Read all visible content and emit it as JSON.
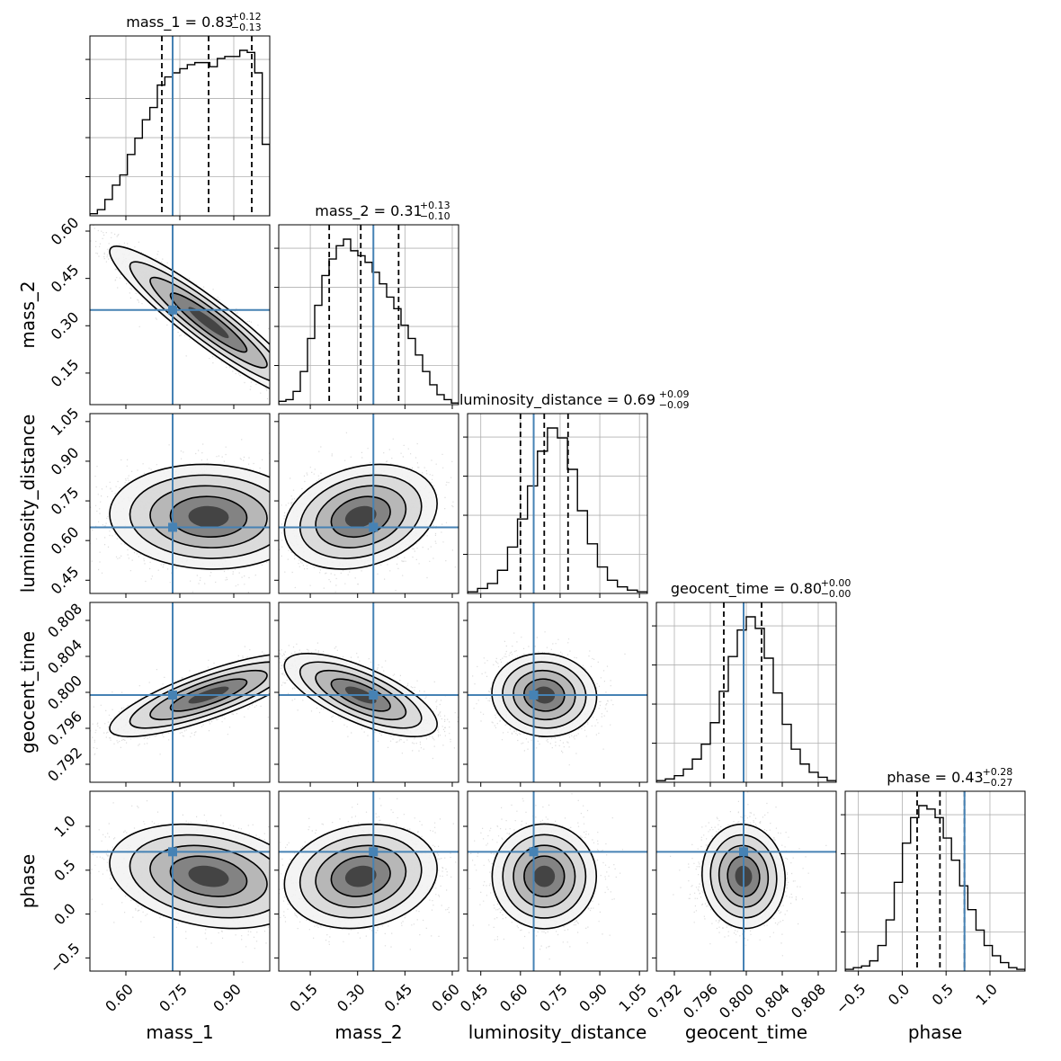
{
  "chart_data": {
    "type": "corner",
    "parameters": [
      {
        "name": "mass_1",
        "label": "mass_1",
        "median": "0.83",
        "plus": "+0.12",
        "minus": "−0.13",
        "truth": 0.73,
        "quantiles": [
          0.7,
          0.83,
          0.95
        ],
        "range": [
          0.5,
          1.0
        ],
        "ticks": [
          0.6,
          0.75,
          0.9
        ],
        "tick_labels": [
          "0.60",
          "0.75",
          "0.90"
        ],
        "hist": [
          0.01,
          0.03,
          0.08,
          0.15,
          0.2,
          0.3,
          0.38,
          0.47,
          0.53,
          0.64,
          0.68,
          0.7,
          0.72,
          0.74,
          0.75,
          0.75,
          0.73,
          0.77,
          0.78,
          0.78,
          0.81,
          0.8,
          0.7,
          0.35
        ]
      },
      {
        "name": "mass_2",
        "label": "mass_2",
        "median": "0.31",
        "plus": "+0.13",
        "minus": "−0.10",
        "truth": 0.35,
        "quantiles": [
          0.21,
          0.31,
          0.43
        ],
        "range": [
          0.05,
          0.62
        ],
        "ticks": [
          0.15,
          0.3,
          0.45,
          0.6
        ],
        "tick_labels": [
          "0.15",
          "0.30",
          "0.45",
          "0.60"
        ],
        "hist": [
          0.02,
          0.03,
          0.08,
          0.2,
          0.4,
          0.6,
          0.78,
          0.88,
          0.96,
          1.0,
          0.93,
          0.9,
          0.86,
          0.8,
          0.73,
          0.65,
          0.58,
          0.48,
          0.4,
          0.3,
          0.2,
          0.12,
          0.06,
          0.03,
          0.01
        ]
      },
      {
        "name": "luminosity_distance",
        "label": "luminosity_distance",
        "median": "0.69",
        "plus": "+0.09",
        "minus": "−0.09",
        "truth": 0.65,
        "quantiles": [
          0.6,
          0.69,
          0.78
        ],
        "range": [
          0.4,
          1.08
        ],
        "ticks": [
          0.45,
          0.6,
          0.75,
          0.9,
          1.05
        ],
        "tick_labels": [
          "0.45",
          "0.60",
          "0.75",
          "0.90",
          "1.05"
        ],
        "hist": [
          0.01,
          0.03,
          0.06,
          0.14,
          0.28,
          0.45,
          0.65,
          0.86,
          1.0,
          0.94,
          0.75,
          0.5,
          0.3,
          0.16,
          0.08,
          0.04,
          0.02,
          0.01
        ]
      },
      {
        "name": "geocent_time",
        "label": "geocent_time",
        "median": "0.80",
        "plus": "+0.00",
        "minus": "−0.00",
        "truth": 0.7997,
        "quantiles": [
          0.7975,
          0.7997,
          0.8017
        ],
        "range": [
          0.79,
          0.81
        ],
        "ticks": [
          0.792,
          0.796,
          0.8,
          0.804,
          0.808
        ],
        "tick_labels": [
          "0.792",
          "0.796",
          "0.800",
          "0.804",
          "0.808"
        ],
        "hist": [
          0.01,
          0.02,
          0.04,
          0.08,
          0.14,
          0.23,
          0.36,
          0.55,
          0.76,
          0.92,
          1.0,
          0.93,
          0.75,
          0.54,
          0.35,
          0.2,
          0.11,
          0.06,
          0.03,
          0.01
        ]
      },
      {
        "name": "phase",
        "label": "phase",
        "median": "0.43",
        "plus": "+0.28",
        "minus": "−0.27",
        "truth": 0.71,
        "quantiles": [
          0.17,
          0.43,
          0.71
        ],
        "range": [
          -0.65,
          1.4
        ],
        "ticks": [
          -0.5,
          0.0,
          0.5,
          1.0
        ],
        "tick_labels": [
          "−0.5",
          "0.0",
          "0.5",
          "1.0"
        ],
        "hist": [
          0.01,
          0.02,
          0.03,
          0.06,
          0.15,
          0.3,
          0.52,
          0.75,
          0.9,
          0.97,
          0.95,
          0.9,
          0.78,
          0.65,
          0.5,
          0.36,
          0.24,
          0.15,
          0.09,
          0.05,
          0.02,
          0.01
        ]
      }
    ],
    "titles": [
      "mass_1 = 0.83",
      "mass_2 = 0.31",
      "luminosity_distance = 0.69",
      "geocent_time = 0.80",
      "phase = 0.43"
    ],
    "grid": true,
    "truth_color": "#4682b4",
    "contour_color": "#000000",
    "correlations": [
      [
        0,
        0,
        0,
        0,
        0
      ],
      [
        -0.93,
        0,
        0,
        0,
        0
      ],
      [
        -0.05,
        0.25,
        0,
        0,
        0
      ],
      [
        0.8,
        -0.7,
        -0.05,
        0,
        0
      ],
      [
        -0.25,
        0.15,
        0.0,
        -0.05,
        0
      ]
    ]
  }
}
